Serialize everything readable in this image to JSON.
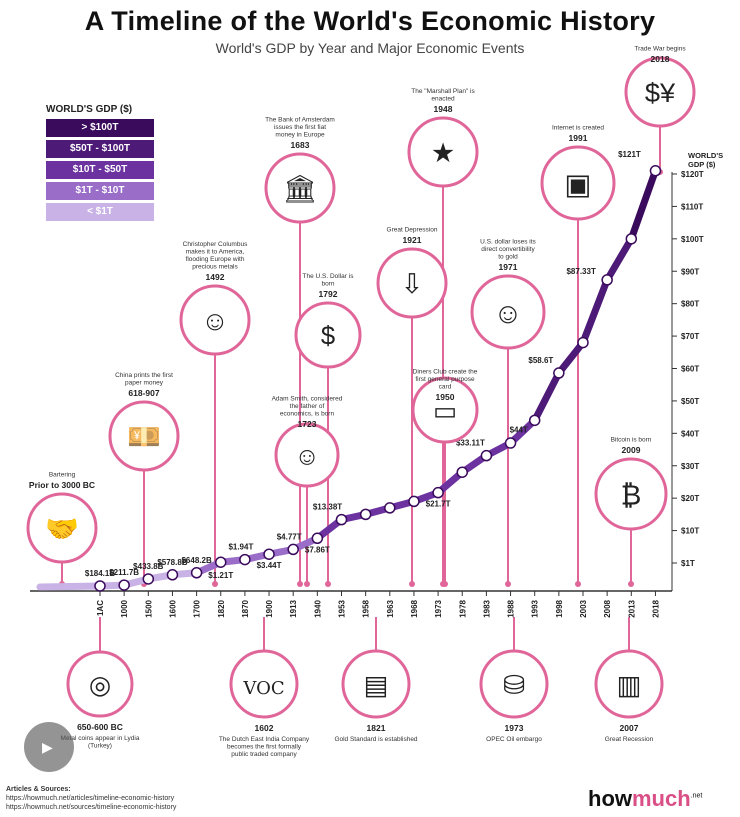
{
  "title": "A Timeline of the World's Economic History",
  "subtitle": "World's GDP by Year and Major Economic Events",
  "legend": {
    "title": "WORLD'S GDP ($)",
    "items": [
      {
        "label": "> $100T",
        "color": "#3a0a5c"
      },
      {
        "label": "$50T - $100T",
        "color": "#4e1a78"
      },
      {
        "label": "$10T - $50T",
        "color": "#6b32a0"
      },
      {
        "label": "$1T - $10T",
        "color": "#9a6dc9"
      },
      {
        "label": "< $1T",
        "color": "#c9b3e6"
      }
    ]
  },
  "chart_data": {
    "type": "line",
    "y_axis_title_line1": "WORLD'S",
    "y_axis_title_line2": "GDP ($)",
    "y_ticks": [
      "$120T",
      "$110T",
      "$100T",
      "$90T",
      "$80T",
      "$70T",
      "$60T",
      "$50T",
      "$40T",
      "$30T",
      "$20T",
      "$10T",
      "$1T"
    ],
    "x_ticks": [
      "1AC",
      "1000",
      "1500",
      "1600",
      "1700",
      "1820",
      "1870",
      "1900",
      "1913",
      "1940",
      "1953",
      "1958",
      "1963",
      "1968",
      "1973",
      "1978",
      "1983",
      "1988",
      "1993",
      "1998",
      "2003",
      "2008",
      "2013",
      "2018"
    ],
    "data_labels": [
      {
        "year": "1AC",
        "label": "$184.1B"
      },
      {
        "year": "1000",
        "label": "$211.7B"
      },
      {
        "year": "1500",
        "label": "$433.8B"
      },
      {
        "year": "1600",
        "label": "$578.8B"
      },
      {
        "year": "1700",
        "label": "$648.2B"
      },
      {
        "year": "1820",
        "label": "$1.21T"
      },
      {
        "year": "1870",
        "label": "$1.94T"
      },
      {
        "year": "1900",
        "label": "$3.44T"
      },
      {
        "year": "1913",
        "label": "$4.77T"
      },
      {
        "year": "1940",
        "label": "$7.86T"
      },
      {
        "year": "1953",
        "label": "$13.38T"
      },
      {
        "year": "1973",
        "label": "$21.7T"
      },
      {
        "year": "1983",
        "label": "$33.11T"
      },
      {
        "year": "1993",
        "label": "$44T"
      },
      {
        "year": "1998",
        "label": "$58.6T"
      },
      {
        "year": "2008",
        "label": "$87.33T"
      },
      {
        "year": "2018",
        "label": "$121T"
      }
    ],
    "points": [
      {
        "year": "1AC",
        "gdp_t": 0.18
      },
      {
        "year": "1000",
        "gdp_t": 0.21
      },
      {
        "year": "1500",
        "gdp_t": 0.43
      },
      {
        "year": "1600",
        "gdp_t": 0.58
      },
      {
        "year": "1700",
        "gdp_t": 0.65
      },
      {
        "year": "1820",
        "gdp_t": 1.21
      },
      {
        "year": "1870",
        "gdp_t": 1.94
      },
      {
        "year": "1900",
        "gdp_t": 3.44
      },
      {
        "year": "1913",
        "gdp_t": 4.77
      },
      {
        "year": "1940",
        "gdp_t": 7.86
      },
      {
        "year": "1953",
        "gdp_t": 13.38
      },
      {
        "year": "1958",
        "gdp_t": 15
      },
      {
        "year": "1963",
        "gdp_t": 17
      },
      {
        "year": "1968",
        "gdp_t": 19
      },
      {
        "year": "1973",
        "gdp_t": 21.7
      },
      {
        "year": "1978",
        "gdp_t": 28
      },
      {
        "year": "1983",
        "gdp_t": 33.11
      },
      {
        "year": "1988",
        "gdp_t": 37
      },
      {
        "year": "1993",
        "gdp_t": 44
      },
      {
        "year": "1998",
        "gdp_t": 58.6
      },
      {
        "year": "2003",
        "gdp_t": 68
      },
      {
        "year": "2008",
        "gdp_t": 87.33
      },
      {
        "year": "2013",
        "gdp_t": 100
      },
      {
        "year": "2018",
        "gdp_t": 121
      }
    ]
  },
  "events_top": [
    {
      "year": "Prior to 3000 BC",
      "desc": "Bartering",
      "icon": "handshake-icon"
    },
    {
      "year": "618-907",
      "desc": "China prints the first paper money",
      "icon": "chinese-banknote-icon"
    },
    {
      "year": "1492",
      "desc": "Christopher Columbus makes it to America, flooding Europe with precious metals",
      "icon": "columbus-portrait-icon"
    },
    {
      "year": "1683",
      "desc": "The Bank of Amsterdam issues the first fiat money in Europe",
      "icon": "bank-building-icon"
    },
    {
      "year": "1792",
      "desc": "The U.S. Dollar is born",
      "icon": "dollar-bill-icon"
    },
    {
      "year": "1723",
      "desc": "Adam Smith, considered the father of economics, is born",
      "icon": "adam-smith-portrait-icon"
    },
    {
      "year": "1948",
      "desc": "The \"Marshall Plan\" is enacted",
      "icon": "marshall-plan-emblem-icon"
    },
    {
      "year": "1921",
      "desc": "Great Depression",
      "icon": "falling-bank-icon"
    },
    {
      "year": "1950",
      "desc": "Diners Club create the first general purpose card",
      "icon": "credit-card-icon"
    },
    {
      "year": "1971",
      "desc": "U.S. dollar loses its direct convertibility to gold",
      "icon": "nixon-portrait-icon"
    },
    {
      "year": "1991",
      "desc": "Internet is created",
      "icon": "computer-icon"
    },
    {
      "year": "2018",
      "desc": "Trade War begins",
      "icon": "trade-war-icon"
    },
    {
      "year": "2009",
      "desc": "Bitcoin is born",
      "icon": "bitcoin-icon"
    }
  ],
  "events_bottom": [
    {
      "year": "650-600 BC",
      "desc": "Metal coins appear in Lydia (Turkey)",
      "icon": "coins-icon"
    },
    {
      "year": "1602",
      "desc": "The Dutch East India Company becomes the first formally public traded company",
      "icon": "voc-logo-icon"
    },
    {
      "year": "1821",
      "desc": "Gold Standard is established",
      "icon": "gold-bars-icon"
    },
    {
      "year": "1973",
      "desc": "OPEC Oil embargo",
      "icon": "oil-barrels-icon"
    },
    {
      "year": "2007",
      "desc": "Great Recession",
      "icon": "collapsing-building-icon"
    }
  ],
  "sources": {
    "heading": "Articles & Sources:",
    "lines": [
      "https://howmuch.net/articles/timeline-economic-history",
      "https://howmuch.net/sources/timeline-economic-history"
    ]
  },
  "logo": {
    "part1": "how",
    "part2": "much",
    "suffix": ".net"
  },
  "colors": {
    "pink": "#e0669a",
    "line_purple": "#4e1a78",
    "line_light": "#c9b3e6",
    "axis": "#333333"
  }
}
